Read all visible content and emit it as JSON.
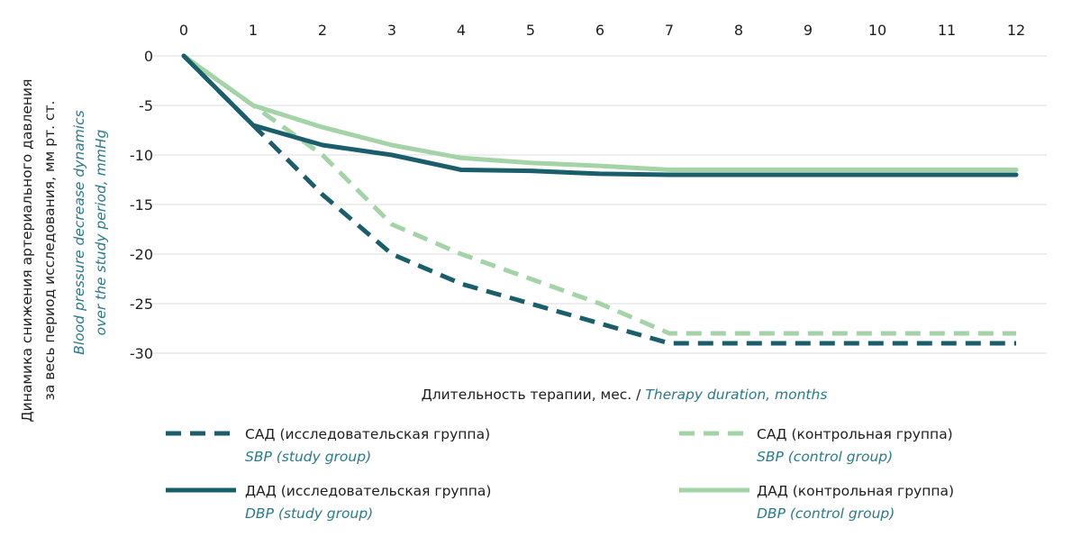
{
  "chart_data": {
    "type": "line",
    "x": [
      0,
      1,
      2,
      3,
      4,
      5,
      6,
      7,
      8,
      9,
      10,
      11,
      12
    ],
    "ylim": [
      -30,
      0
    ],
    "yticks": [
      0,
      -5,
      -10,
      -15,
      -20,
      -25,
      -30
    ],
    "grid": true,
    "xaxis_position": "top",
    "xlabel": {
      "ru": "Длительность терапии, мес. / ",
      "en": "Therapy duration, months"
    },
    "ylabel": {
      "ru_line1": "Динамика снижения артериального давления",
      "ru_line2": "за весь период исследования, мм рт. ст.",
      "en_line1": "Blood pressure decrease dynamics",
      "en_line2": "over the study period, mmHg"
    },
    "legend_position": "bottom",
    "series": [
      {
        "name_ru": "САД (исследовательская группа)",
        "name_en": "SBP (study group)",
        "color": "#1b5e6b",
        "dash": "dashed",
        "x": [
          0,
          1,
          2,
          3,
          4,
          5,
          6,
          7,
          8,
          9,
          10,
          11,
          12
        ],
        "values": [
          0,
          -7,
          -14,
          -20,
          -23,
          -25,
          -27,
          -29,
          -29,
          -29,
          -29,
          -29,
          -29
        ]
      },
      {
        "name_ru": "САД (контрольная группа)",
        "name_en": "SBP (control group)",
        "color": "#a3d3a6",
        "dash": "dashed",
        "x": [
          0,
          1,
          2,
          3,
          4,
          5,
          6,
          7,
          8,
          9,
          10,
          11,
          12
        ],
        "values": [
          0,
          -5,
          -10,
          -17,
          -20,
          -22.5,
          -25,
          -28,
          -28,
          -28,
          -28,
          -28,
          -28
        ]
      },
      {
        "name_ru": "ДАД (исследовательская группа)",
        "name_en": "DBP (study group)",
        "color": "#1b5e6b",
        "dash": "solid",
        "x": [
          0,
          1,
          2,
          3,
          4,
          5,
          6,
          7,
          8,
          9,
          10,
          11,
          12
        ],
        "values": [
          0,
          -7,
          -9,
          -10,
          -11.5,
          -11.6,
          -11.9,
          -12,
          -12,
          -12,
          -12,
          -12,
          -12
        ]
      },
      {
        "name_ru": "ДАД (контрольная группа)",
        "name_en": "DBP (control group)",
        "color": "#a3d3a6",
        "dash": "solid",
        "x": [
          0,
          1,
          2,
          3,
          4,
          5,
          6,
          7,
          8,
          9,
          10,
          11,
          12
        ],
        "values": [
          0,
          -5,
          -7.2,
          -9,
          -10.3,
          -10.8,
          -11.1,
          -11.5,
          -11.5,
          -11.5,
          -11.5,
          -11.5,
          -11.5
        ]
      }
    ]
  }
}
